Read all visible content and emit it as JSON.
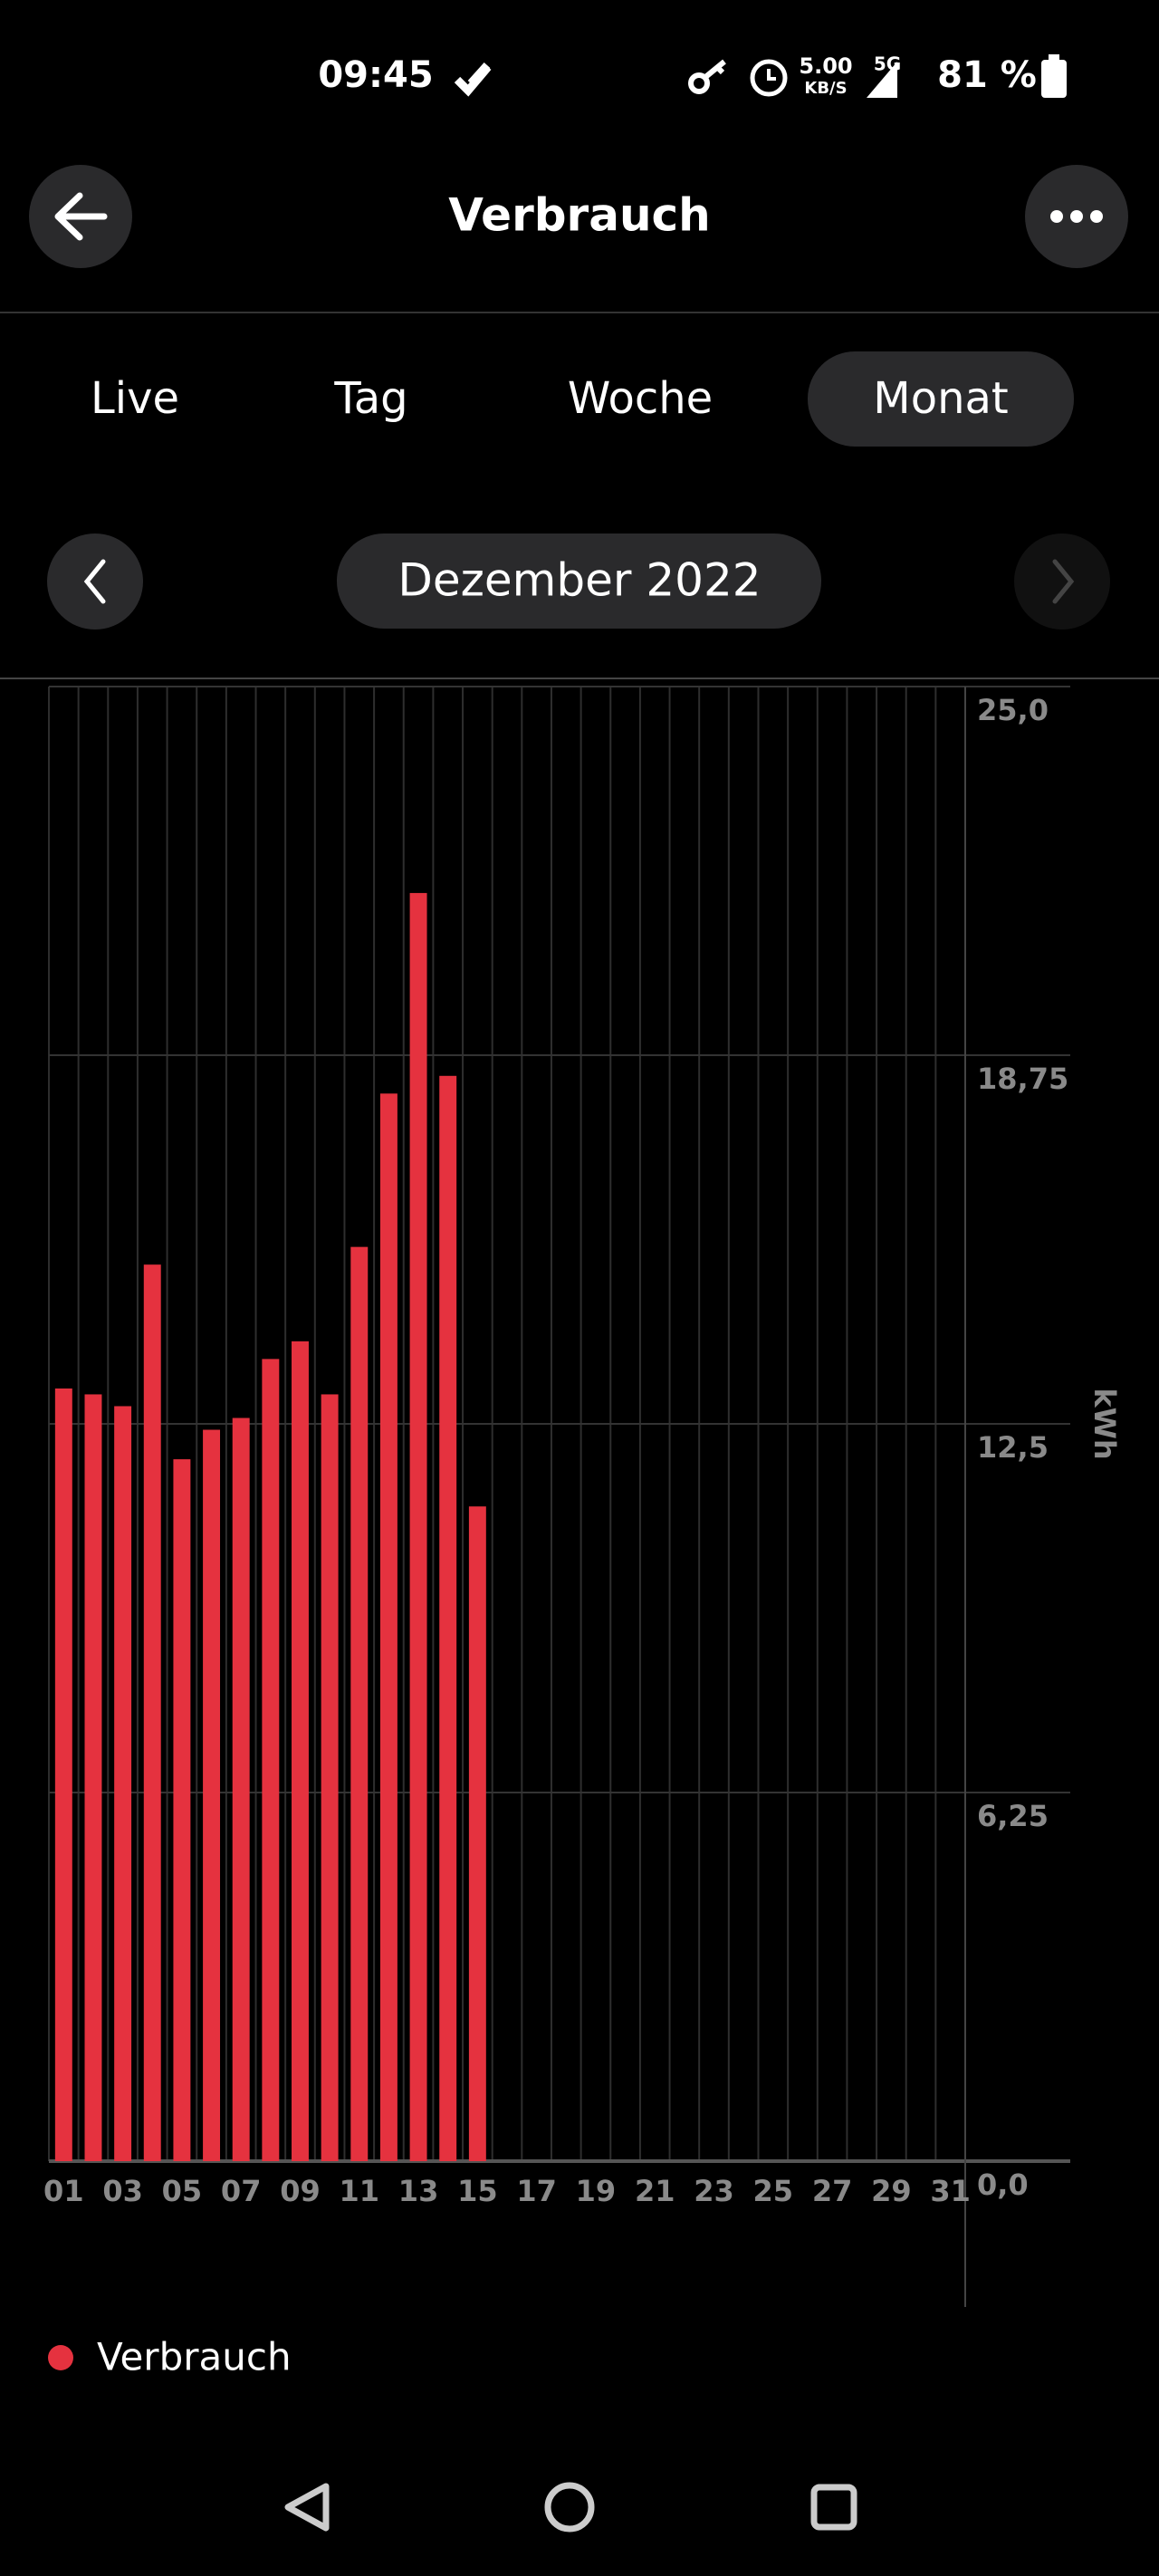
{
  "status_bar": {
    "time": "09:45",
    "net_speed": "5.00",
    "net_unit": "KB/S",
    "network": "5G",
    "battery": "81 %"
  },
  "header": {
    "title": "Verbrauch"
  },
  "tabs": [
    "Live",
    "Tag",
    "Woche",
    "Monat"
  ],
  "selected_tab": 3,
  "period": "Dezember 2022",
  "chart_data": {
    "type": "bar",
    "y_label": "kWh",
    "categories": [
      "01",
      null,
      "03",
      null,
      "05",
      null,
      "07",
      null,
      "09",
      null,
      "11",
      null,
      "13",
      null,
      "15",
      null,
      "17",
      null,
      "19",
      null,
      "21",
      null,
      "23",
      null,
      "25",
      null,
      "27",
      null,
      "29",
      null,
      "31"
    ],
    "series": [
      {
        "name": "Verbrauch",
        "color": "#e5323f",
        "values": [
          13.1,
          13.0,
          12.8,
          15.2,
          11.9,
          12.4,
          12.6,
          13.6,
          13.9,
          13.0,
          15.5,
          18.1,
          21.5,
          18.4,
          11.1,
          null,
          null,
          null,
          null,
          null,
          null,
          null,
          null,
          null,
          null,
          null,
          null,
          null,
          null,
          null,
          null
        ]
      }
    ],
    "ylim": [
      0,
      25
    ],
    "yticks": [
      {
        "value": 0,
        "label": "0,0"
      },
      {
        "value": 6.25,
        "label": "6,25"
      },
      {
        "value": 12.5,
        "label": "12,5"
      },
      {
        "value": 18.75,
        "label": "18,75"
      },
      {
        "value": 25,
        "label": "25,0"
      }
    ],
    "grid": true,
    "legend": "bottom-left"
  }
}
